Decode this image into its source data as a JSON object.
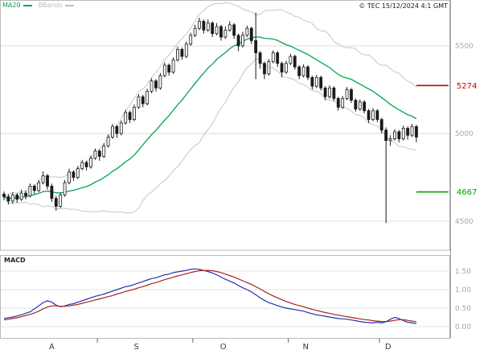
{
  "header": {
    "legend": [
      {
        "label": "MA20",
        "color": "#00a54f"
      },
      {
        "label": "BBands",
        "color": "#bdbdbd"
      }
    ],
    "copyright": "© TEC 15/12/2024 4:1 GMT"
  },
  "colors": {
    "background": "#ffffff",
    "grid": "#dcdcdc",
    "candle": "#1a1a1a",
    "ma20": "#00a54f",
    "bbands": "#c6c6c6",
    "axis_text": "#9bacac",
    "month_text": "#3a3a3a",
    "frame": "#bbbbbb",
    "macd_line": "#2233aa",
    "signal_line": "#aa2222"
  },
  "chart_data": [
    {
      "type": "candlestick",
      "title": "",
      "x_axis_months": [
        {
          "label": "A",
          "i": 11
        },
        {
          "label": "S",
          "i": 30.5
        },
        {
          "label": "O",
          "i": 50.5
        },
        {
          "label": "N",
          "i": 69.5
        },
        {
          "label": "D",
          "i": 88.5
        }
      ],
      "month_boundaries": [
        21.5,
        43.5,
        65.5,
        86.5
      ],
      "ylim": [
        4420,
        5760
      ],
      "yticks": [
        {
          "value": 5500,
          "label": "5500"
        },
        {
          "value": 5000,
          "label": "5000"
        },
        {
          "value": 4500,
          "label": "4500"
        }
      ],
      "levels": [
        {
          "value": 5274,
          "label": "5274",
          "color": "#cc0000"
        },
        {
          "value": 4667,
          "label": "4667",
          "color": "#00a500"
        }
      ],
      "indicators": {
        "ma_period": 20,
        "bb_period": 20,
        "bb_mult": 2
      },
      "candles": [
        [
          4655,
          4670,
          4620,
          4640
        ],
        [
          4640,
          4655,
          4595,
          4615
        ],
        [
          4615,
          4665,
          4600,
          4650
        ],
        [
          4650,
          4660,
          4605,
          4625
        ],
        [
          4625,
          4680,
          4615,
          4660
        ],
        [
          4660,
          4675,
          4625,
          4645
        ],
        [
          4645,
          4715,
          4635,
          4700
        ],
        [
          4700,
          4710,
          4655,
          4675
        ],
        [
          4675,
          4735,
          4665,
          4720
        ],
        [
          4720,
          4785,
          4710,
          4760
        ],
        [
          4760,
          4770,
          4680,
          4700
        ],
        [
          4700,
          4715,
          4610,
          4630
        ],
        [
          4630,
          4645,
          4560,
          4585
        ],
        [
          4585,
          4665,
          4575,
          4650
        ],
        [
          4650,
          4735,
          4640,
          4720
        ],
        [
          4720,
          4800,
          4710,
          4780
        ],
        [
          4780,
          4790,
          4730,
          4750
        ],
        [
          4750,
          4815,
          4740,
          4800
        ],
        [
          4800,
          4850,
          4790,
          4835
        ],
        [
          4835,
          4845,
          4790,
          4810
        ],
        [
          4810,
          4875,
          4800,
          4860
        ],
        [
          4860,
          4915,
          4850,
          4900
        ],
        [
          4900,
          4910,
          4845,
          4870
        ],
        [
          4870,
          4945,
          4860,
          4930
        ],
        [
          4930,
          4995,
          4920,
          4980
        ],
        [
          4980,
          5055,
          4970,
          5040
        ],
        [
          5040,
          5050,
          4975,
          5000
        ],
        [
          5000,
          5075,
          4990,
          5060
        ],
        [
          5060,
          5135,
          5050,
          5120
        ],
        [
          5120,
          5130,
          5060,
          5080
        ],
        [
          5080,
          5165,
          5070,
          5150
        ],
        [
          5150,
          5225,
          5140,
          5210
        ],
        [
          5210,
          5220,
          5150,
          5170
        ],
        [
          5170,
          5255,
          5160,
          5240
        ],
        [
          5240,
          5315,
          5230,
          5300
        ],
        [
          5300,
          5310,
          5240,
          5260
        ],
        [
          5260,
          5345,
          5250,
          5330
        ],
        [
          5330,
          5405,
          5320,
          5390
        ],
        [
          5390,
          5400,
          5330,
          5350
        ],
        [
          5350,
          5435,
          5340,
          5420
        ],
        [
          5420,
          5495,
          5410,
          5480
        ],
        [
          5480,
          5490,
          5420,
          5440
        ],
        [
          5440,
          5525,
          5430,
          5510
        ],
        [
          5510,
          5575,
          5500,
          5560
        ],
        [
          5560,
          5620,
          5550,
          5600
        ],
        [
          5600,
          5660,
          5590,
          5640
        ],
        [
          5640,
          5650,
          5570,
          5590
        ],
        [
          5590,
          5650,
          5580,
          5630
        ],
        [
          5630,
          5640,
          5550,
          5570
        ],
        [
          5570,
          5630,
          5560,
          5610
        ],
        [
          5610,
          5620,
          5530,
          5550
        ],
        [
          5550,
          5610,
          5540,
          5590
        ],
        [
          5590,
          5640,
          5580,
          5620
        ],
        [
          5620,
          5630,
          5540,
          5560
        ],
        [
          5560,
          5570,
          5470,
          5500
        ],
        [
          5500,
          5580,
          5490,
          5560
        ],
        [
          5560,
          5615,
          5550,
          5600
        ],
        [
          5600,
          5610,
          5510,
          5530
        ],
        [
          5530,
          5690,
          5310,
          5460
        ],
        [
          5460,
          5470,
          5370,
          5400
        ],
        [
          5400,
          5410,
          5310,
          5340
        ],
        [
          5340,
          5425,
          5330,
          5410
        ],
        [
          5410,
          5475,
          5400,
          5460
        ],
        [
          5460,
          5470,
          5380,
          5400
        ],
        [
          5400,
          5410,
          5320,
          5350
        ],
        [
          5350,
          5415,
          5340,
          5400
        ],
        [
          5400,
          5455,
          5390,
          5440
        ],
        [
          5440,
          5450,
          5365,
          5380
        ],
        [
          5380,
          5390,
          5310,
          5330
        ],
        [
          5330,
          5395,
          5320,
          5380
        ],
        [
          5380,
          5390,
          5305,
          5320
        ],
        [
          5320,
          5330,
          5250,
          5270
        ],
        [
          5270,
          5335,
          5260,
          5320
        ],
        [
          5320,
          5330,
          5245,
          5260
        ],
        [
          5260,
          5270,
          5190,
          5210
        ],
        [
          5210,
          5275,
          5200,
          5260
        ],
        [
          5260,
          5270,
          5185,
          5200
        ],
        [
          5200,
          5210,
          5130,
          5150
        ],
        [
          5150,
          5215,
          5140,
          5200
        ],
        [
          5200,
          5265,
          5190,
          5250
        ],
        [
          5250,
          5260,
          5175,
          5190
        ],
        [
          5190,
          5200,
          5125,
          5140
        ],
        [
          5140,
          5195,
          5130,
          5180
        ],
        [
          5180,
          5190,
          5115,
          5130
        ],
        [
          5130,
          5140,
          5060,
          5080
        ],
        [
          5080,
          5145,
          5070,
          5130
        ],
        [
          5130,
          5140,
          5065,
          5080
        ],
        [
          5080,
          5090,
          5000,
          5020
        ],
        [
          5020,
          5035,
          4490,
          4960
        ],
        [
          4960,
          4990,
          4930,
          4970
        ],
        [
          4970,
          5025,
          4960,
          5010
        ],
        [
          5010,
          5020,
          4950,
          4970
        ],
        [
          4970,
          5045,
          4960,
          5030
        ],
        [
          5030,
          5040,
          4965,
          4990
        ],
        [
          4990,
          5055,
          4980,
          5040
        ],
        [
          5040,
          5050,
          4950,
          4980
        ]
      ]
    },
    {
      "type": "line",
      "title": "MACD",
      "yticks": [
        {
          "value": 1.5,
          "label": "1.50"
        },
        {
          "value": 1.0,
          "label": "1.00"
        },
        {
          "value": 0.5,
          "label": "0.50"
        },
        {
          "value": 0.0,
          "label": "0.00"
        }
      ],
      "series": [
        {
          "name": "macd",
          "color": "#2233aa",
          "values": [
            0.22,
            0.24,
            0.26,
            0.29,
            0.32,
            0.36,
            0.4,
            0.48,
            0.56,
            0.65,
            0.7,
            0.66,
            0.58,
            0.54,
            0.56,
            0.6,
            0.62,
            0.66,
            0.7,
            0.74,
            0.78,
            0.82,
            0.85,
            0.88,
            0.92,
            0.96,
            1.0,
            1.04,
            1.08,
            1.1,
            1.14,
            1.18,
            1.22,
            1.26,
            1.3,
            1.32,
            1.36,
            1.4,
            1.42,
            1.46,
            1.48,
            1.5,
            1.52,
            1.55,
            1.56,
            1.55,
            1.52,
            1.49,
            1.45,
            1.4,
            1.34,
            1.28,
            1.23,
            1.18,
            1.11,
            1.05,
            1.0,
            0.94,
            0.86,
            0.78,
            0.71,
            0.65,
            0.61,
            0.57,
            0.53,
            0.5,
            0.48,
            0.46,
            0.44,
            0.42,
            0.38,
            0.35,
            0.32,
            0.3,
            0.28,
            0.26,
            0.24,
            0.22,
            0.21,
            0.2,
            0.18,
            0.16,
            0.14,
            0.12,
            0.11,
            0.1,
            0.12,
            0.1,
            0.13,
            0.2,
            0.25,
            0.22,
            0.16,
            0.12,
            0.1,
            0.08
          ]
        },
        {
          "name": "signal",
          "color": "#aa2222",
          "values": [
            0.18,
            0.2,
            0.22,
            0.24,
            0.27,
            0.3,
            0.33,
            0.37,
            0.42,
            0.48,
            0.53,
            0.56,
            0.56,
            0.55,
            0.55,
            0.56,
            0.58,
            0.6,
            0.63,
            0.66,
            0.69,
            0.72,
            0.75,
            0.78,
            0.81,
            0.84,
            0.88,
            0.91,
            0.95,
            0.98,
            1.01,
            1.05,
            1.08,
            1.12,
            1.16,
            1.19,
            1.23,
            1.27,
            1.3,
            1.34,
            1.37,
            1.4,
            1.43,
            1.46,
            1.49,
            1.51,
            1.52,
            1.52,
            1.51,
            1.49,
            1.46,
            1.42,
            1.38,
            1.34,
            1.29,
            1.24,
            1.19,
            1.14,
            1.08,
            1.02,
            0.95,
            0.89,
            0.83,
            0.78,
            0.73,
            0.68,
            0.64,
            0.6,
            0.57,
            0.54,
            0.5,
            0.47,
            0.44,
            0.41,
            0.38,
            0.36,
            0.33,
            0.31,
            0.29,
            0.27,
            0.25,
            0.23,
            0.21,
            0.19,
            0.18,
            0.16,
            0.15,
            0.14,
            0.14,
            0.15,
            0.17,
            0.19,
            0.19,
            0.17,
            0.15,
            0.13
          ]
        }
      ]
    }
  ]
}
